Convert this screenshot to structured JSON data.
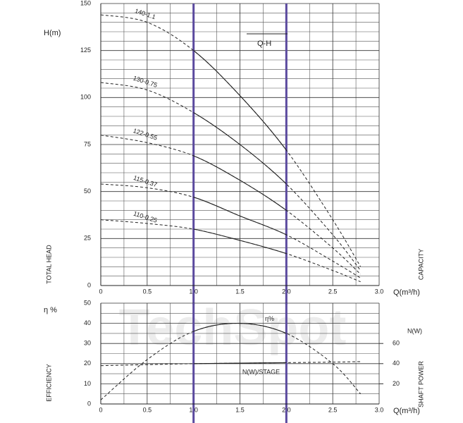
{
  "watermark": "TechSpot",
  "chart_data": [
    {
      "type": "line",
      "y_label": "H(m)",
      "y_axis_title": "TOTAL HEAD",
      "x_label": "Q(m³/h)",
      "x_axis_title": "CAPACITY",
      "annotation": "Q-H",
      "x": [
        0,
        0.5,
        1.0,
        1.5,
        2.0,
        2.5,
        2.8
      ],
      "series": [
        {
          "name": "140-1.1",
          "color": "#222",
          "values": [
            144,
            140,
            125,
            101,
            72,
            35,
            10
          ]
        },
        {
          "name": "130-0.75",
          "color": "#222",
          "values": [
            108,
            104,
            92,
            75,
            54,
            27,
            8
          ]
        },
        {
          "name": "122-0.55",
          "color": "#222",
          "values": [
            80,
            76,
            69,
            56,
            40,
            20,
            6
          ]
        },
        {
          "name": "115-0.37",
          "color": "#222",
          "values": [
            54,
            52,
            47,
            37,
            27,
            13,
            4
          ]
        },
        {
          "name": "110-0.25",
          "color": "#222",
          "values": [
            35,
            33,
            30,
            24,
            17,
            8,
            2
          ]
        }
      ],
      "xlim": [
        0,
        3
      ],
      "ylim": [
        0,
        150
      ],
      "xticks": [
        0,
        0.5,
        {
          "value": 1,
          "label": "1.0"
        },
        1.5,
        {
          "value": 2,
          "label": "2.0"
        },
        2.5,
        {
          "value": 3,
          "label": "3.0"
        }
      ],
      "yticks": [
        0,
        25,
        50,
        75,
        100,
        125,
        150
      ],
      "highlight_x": [
        1,
        2
      ],
      "highlight_color": "#5b4a9e",
      "grid": true
    },
    {
      "type": "line",
      "y_label": "η %",
      "y_axis_title": "EFFICIENCY",
      "y2_label": "N(W)",
      "y2_axis_title": "SHAFT POWER",
      "x_label": "Q(m³/h)",
      "x": [
        0,
        0.5,
        1.0,
        1.5,
        2.0,
        2.5,
        2.8
      ],
      "series": [
        {
          "name": "η%",
          "color": "#222",
          "values": [
            2,
            22,
            36,
            40,
            35,
            20,
            5
          ]
        },
        {
          "name": "N(W)/STAGE",
          "color": "#222",
          "axis": "y2",
          "values": [
            38,
            39,
            40,
            40.5,
            41,
            41.5,
            42
          ]
        }
      ],
      "xlim": [
        0,
        3
      ],
      "ylim": [
        0,
        50
      ],
      "y2lim": [
        0,
        100
      ],
      "xticks": [
        0,
        0.5,
        {
          "value": 1,
          "label": "1.0"
        },
        1.5,
        {
          "value": 2,
          "label": "2.0"
        },
        2.5,
        {
          "value": 3,
          "label": "3.0"
        }
      ],
      "yticks": [
        0,
        10,
        20,
        30,
        40,
        50
      ],
      "y2ticks": [
        20,
        40,
        60
      ],
      "highlight_x": [
        1,
        2
      ],
      "highlight_color": "#5b4a9e",
      "grid": true
    }
  ]
}
